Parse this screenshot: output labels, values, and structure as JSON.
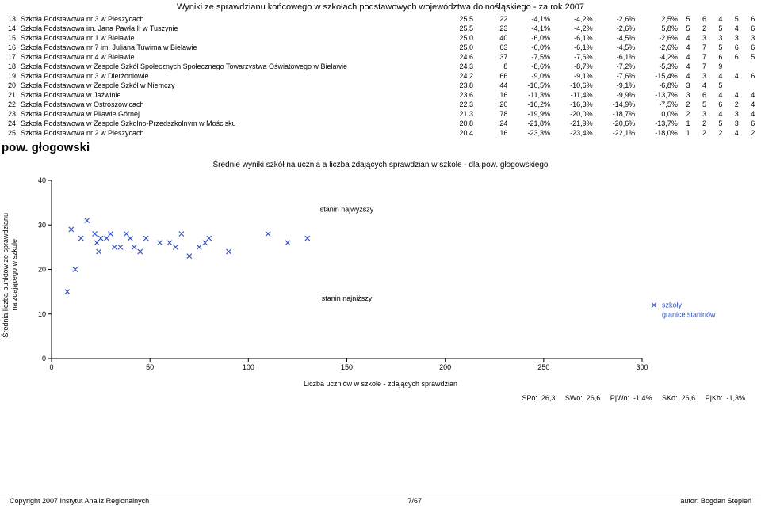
{
  "title": "Wyniki ze sprawdzianu końcowego w szkołach podstawowych województwa dolnośląskiego - za rok 2007",
  "rows": [
    {
      "n": "13",
      "name": "Szkoła Podstawowa nr 3 w Pieszycach",
      "v": [
        "25,5",
        "22",
        "-4,1%",
        "-4,2%",
        "-2,6%",
        "2,5%",
        "5",
        "6",
        "4",
        "5",
        "6"
      ]
    },
    {
      "n": "14",
      "name": "Szkoła Podstawowa im. Jana Pawła II w Tuszynie",
      "v": [
        "25,5",
        "23",
        "-4,1%",
        "-4,2%",
        "-2,6%",
        "5,8%",
        "5",
        "2",
        "5",
        "4",
        "6"
      ]
    },
    {
      "n": "15",
      "name": "Szkoła Podstawowa nr 1 w Bielawie",
      "v": [
        "25,0",
        "40",
        "-6,0%",
        "-6,1%",
        "-4,5%",
        "-2,6%",
        "4",
        "3",
        "3",
        "3",
        "3"
      ]
    },
    {
      "n": "16",
      "name": "Szkoła Podstawowa nr 7 im. Juliana Tuwima w Bielawie",
      "v": [
        "25,0",
        "63",
        "-6,0%",
        "-6,1%",
        "-4,5%",
        "-2,6%",
        "4",
        "7",
        "5",
        "6",
        "6"
      ]
    },
    {
      "n": "17",
      "name": "Szkoła Podstawowa nr 4 w Bielawie",
      "v": [
        "24,6",
        "37",
        "-7,5%",
        "-7,6%",
        "-6,1%",
        "-4,2%",
        "4",
        "7",
        "6",
        "6",
        "5"
      ]
    },
    {
      "n": "18",
      "name": "Szkoła Podstawowa w Zespole Szkół Społecznych Społecznego Towarzystwa Oświatowego w Bielawie",
      "v": [
        "24,3",
        "8",
        "-8,6%",
        "-8,7%",
        "-7,2%",
        "-5,3%",
        "4",
        "7",
        "9",
        "",
        ""
      ]
    },
    {
      "n": "19",
      "name": "Szkoła Podstawowa nr 3 w Dierżoniowie",
      "v": [
        "24,2",
        "66",
        "-9,0%",
        "-9,1%",
        "-7,6%",
        "-15,4%",
        "4",
        "3",
        "4",
        "4",
        "6"
      ]
    },
    {
      "n": "20",
      "name": "Szkoła Podstawowa w Zespole Szkół w Niemczy",
      "v": [
        "23,8",
        "44",
        "-10,5%",
        "-10,6%",
        "-9,1%",
        "-6,8%",
        "3",
        "4",
        "5",
        "",
        ""
      ]
    },
    {
      "n": "21",
      "name": "Szkoła Podstawowa w Jaźwinie",
      "v": [
        "23,6",
        "16",
        "-11,3%",
        "-11,4%",
        "-9,9%",
        "-13,7%",
        "3",
        "6",
        "4",
        "4",
        "4"
      ]
    },
    {
      "n": "22",
      "name": "Szkoła Podstawowa w Ostroszowicach",
      "v": [
        "22,3",
        "20",
        "-16,2%",
        "-16,3%",
        "-14,9%",
        "-7,5%",
        "2",
        "5",
        "6",
        "2",
        "4"
      ]
    },
    {
      "n": "23",
      "name": "Szkoła Podstawowa w Piławie Górnej",
      "v": [
        "21,3",
        "78",
        "-19,9%",
        "-20,0%",
        "-18,7%",
        "0,0%",
        "2",
        "3",
        "4",
        "3",
        "4"
      ]
    },
    {
      "n": "24",
      "name": "Szkoła Podstawowa w Zespole Szkolno-Przedszkolnym w Mościsku",
      "v": [
        "20,8",
        "24",
        "-21,8%",
        "-21,9%",
        "-20,6%",
        "-13,7%",
        "1",
        "2",
        "5",
        "3",
        "6"
      ]
    },
    {
      "n": "25",
      "name": "Szkoła Podstawowa nr 2 w Pieszycach",
      "v": [
        "20,4",
        "16",
        "-23,3%",
        "-23,4%",
        "-22,1%",
        "-18,0%",
        "1",
        "2",
        "2",
        "4",
        "2"
      ]
    }
  ],
  "section": "pow. głogowski",
  "chart_title": "Średnie wyniki szkół na ucznia a liczba zdających sprawdzian w szkole - dla pow. głogowskiego",
  "ylabel1": "Średnia liczba punktów ze sprawdzianu",
  "ylabel2": "na zdającego w szkole",
  "xlabel": "Liczba uczniów w szkole - zdających sprawdzian",
  "legend": {
    "schools": "szkoły",
    "bounds": "granice staninów"
  },
  "ann_high": "stanin najwyższy",
  "ann_low": "stanin najniższy",
  "chart": {
    "xlim": [
      0,
      300
    ],
    "ylim": [
      0,
      40
    ],
    "xticks": [
      0,
      50,
      100,
      150,
      200,
      250,
      300
    ],
    "yticks": [
      0,
      10,
      20,
      30,
      40
    ],
    "color": "#3050c0",
    "points": [
      [
        8,
        15
      ],
      [
        10,
        29
      ],
      [
        12,
        20
      ],
      [
        15,
        27
      ],
      [
        18,
        31
      ],
      [
        22,
        28
      ],
      [
        23,
        26
      ],
      [
        24,
        24
      ],
      [
        25,
        27
      ],
      [
        28,
        27
      ],
      [
        30,
        28
      ],
      [
        32,
        25
      ],
      [
        35,
        25
      ],
      [
        38,
        28
      ],
      [
        40,
        27
      ],
      [
        42,
        25
      ],
      [
        45,
        24
      ],
      [
        48,
        27
      ],
      [
        55,
        26
      ],
      [
        60,
        26
      ],
      [
        63,
        25
      ],
      [
        66,
        28
      ],
      [
        70,
        23
      ],
      [
        75,
        25
      ],
      [
        78,
        26
      ],
      [
        80,
        27
      ],
      [
        90,
        24
      ],
      [
        110,
        28
      ],
      [
        120,
        26
      ],
      [
        130,
        27
      ]
    ]
  },
  "stats": {
    "spo": "SPo:",
    "spo_v": "26,3",
    "swo": "SWo:",
    "swo_v": "26,6",
    "pwo": "P|Wo:",
    "pwo_v": "-1,4%",
    "sko": "SKo:",
    "sko_v": "26,6",
    "pkh": "P|Kh:",
    "pkh_v": "-1,3%"
  },
  "footer": {
    "left": "Copyright 2007 Instytut Analiz Regionalnych",
    "center": "7/67",
    "right": "autor: Bogdan Stępień"
  }
}
